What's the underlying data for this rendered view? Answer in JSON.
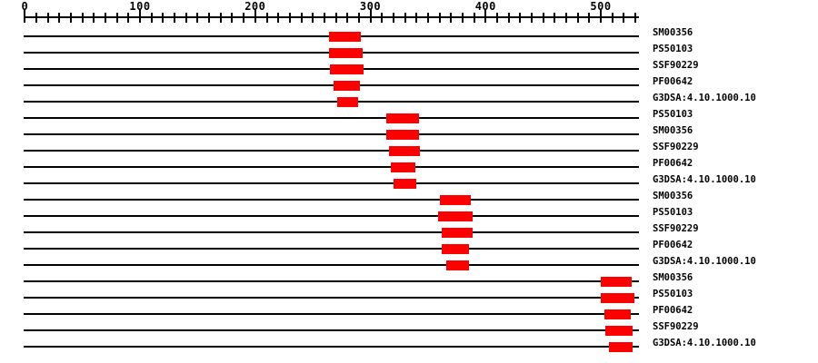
{
  "chart_data": {
    "type": "bar",
    "subtype": "protein-signature-domain-matches",
    "orientation": "horizontal",
    "title": "",
    "xlabel": "",
    "ylabel": "",
    "grid": false,
    "legend": "none",
    "axis": {
      "min": 0,
      "max": 533,
      "major_tick_interval": 100,
      "minor_tick_interval": 10,
      "last_minor_tick": 530,
      "major_tick_labels": [
        "0",
        "100",
        "200",
        "300",
        "400",
        "500"
      ]
    },
    "colors": {
      "bar": "#ff0000",
      "line": "#000000",
      "background": "#ffffff"
    },
    "rows": [
      {
        "label": "SM00356",
        "start": 264,
        "end": 292
      },
      {
        "label": "PS50103",
        "start": 264,
        "end": 293
      },
      {
        "label": "SSF90229",
        "start": 265,
        "end": 294
      },
      {
        "label": "PF00642",
        "start": 268,
        "end": 291
      },
      {
        "label": "G3DSA:4.10.1000.10",
        "start": 271,
        "end": 289
      },
      {
        "label": "PS50103",
        "start": 314,
        "end": 342
      },
      {
        "label": "SM00356",
        "start": 314,
        "end": 342
      },
      {
        "label": "SSF90229",
        "start": 316,
        "end": 343
      },
      {
        "label": "PF00642",
        "start": 318,
        "end": 339
      },
      {
        "label": "G3DSA:4.10.1000.10",
        "start": 320,
        "end": 340
      },
      {
        "label": "SM00356",
        "start": 360,
        "end": 387
      },
      {
        "label": "PS50103",
        "start": 359,
        "end": 389
      },
      {
        "label": "SSF90229",
        "start": 362,
        "end": 389
      },
      {
        "label": "PF00642",
        "start": 362,
        "end": 386
      },
      {
        "label": "G3DSA:4.10.1000.10",
        "start": 366,
        "end": 386
      },
      {
        "label": "SM00356",
        "start": 500,
        "end": 527
      },
      {
        "label": "PS50103",
        "start": 500,
        "end": 529
      },
      {
        "label": "PF00642",
        "start": 503,
        "end": 526
      },
      {
        "label": "SSF90229",
        "start": 504,
        "end": 528
      },
      {
        "label": "G3DSA:4.10.1000.10",
        "start": 507,
        "end": 528
      }
    ]
  }
}
